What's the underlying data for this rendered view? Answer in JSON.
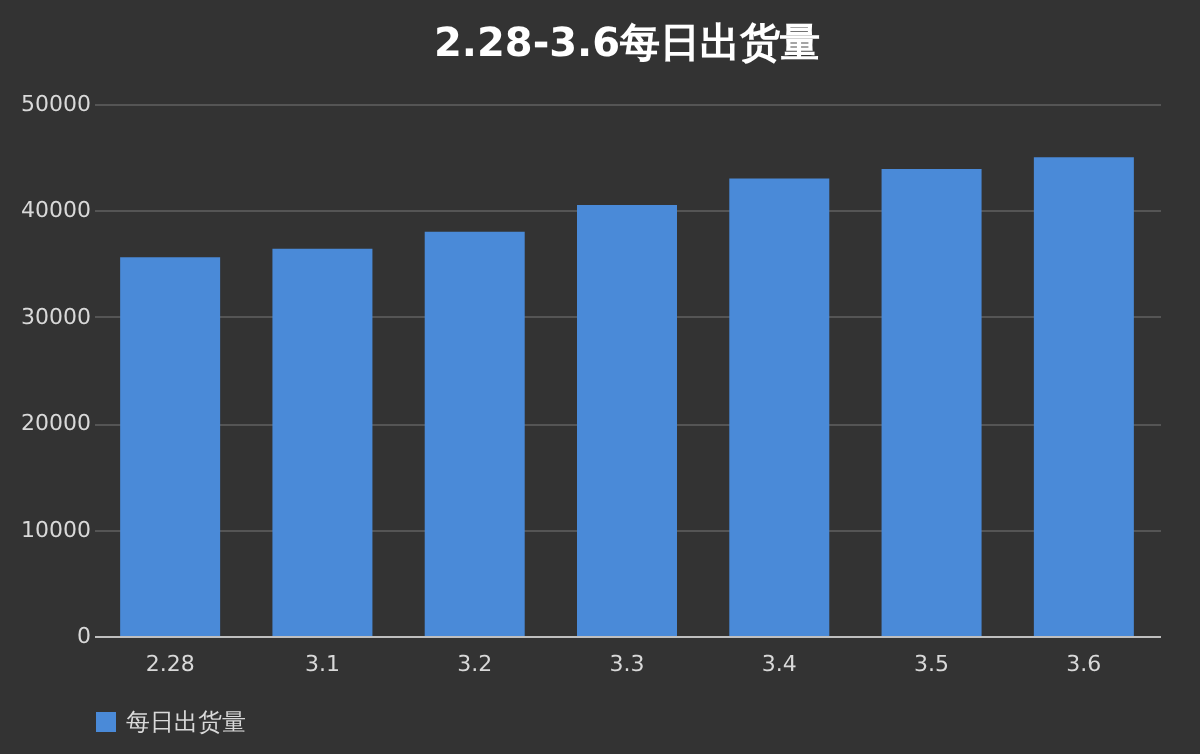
{
  "chart_data": {
    "type": "bar",
    "title": "2.28-3.6每日出货量",
    "categories": [
      "2.28",
      "3.1",
      "3.2",
      "3.3",
      "3.4",
      "3.5",
      "3.6"
    ],
    "series": [
      {
        "name": "每日出货量",
        "color": "#4a8ad8",
        "values": [
          35600,
          36400,
          38000,
          40500,
          43000,
          43900,
          45000
        ]
      }
    ],
    "ylim": [
      0,
      50000
    ],
    "yticks": [
      0,
      10000,
      20000,
      30000,
      40000,
      50000
    ],
    "grid": "y",
    "legend": "bottom"
  }
}
